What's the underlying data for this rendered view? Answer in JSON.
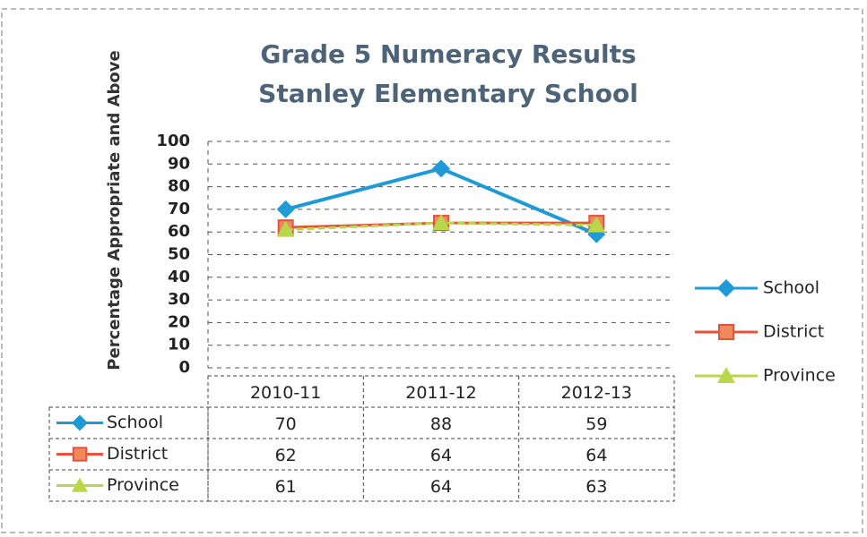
{
  "chart_data": {
    "type": "line",
    "title": "Grade 5 Numeracy Results",
    "subtitle": "Stanley Elementary School",
    "y_label": "Percentage Appropriate and Above",
    "categories": [
      "2010-11",
      "2011-12",
      "2012-13"
    ],
    "series": [
      {
        "name": "School",
        "color": "#1e9ad6",
        "marker": "diamond",
        "values": [
          70,
          88,
          59
        ]
      },
      {
        "name": "District",
        "color": "#e5533c",
        "marker": "square",
        "values": [
          62,
          64,
          64
        ]
      },
      {
        "name": "Province",
        "color": "#b8d84a",
        "marker": "triangle",
        "values": [
          61,
          64,
          63
        ]
      }
    ],
    "ylim": [
      0,
      100
    ],
    "yticks": [
      0,
      10,
      20,
      30,
      40,
      50,
      60,
      70,
      80,
      90,
      100
    ],
    "grid": true,
    "legend": "right",
    "data_table": true
  }
}
